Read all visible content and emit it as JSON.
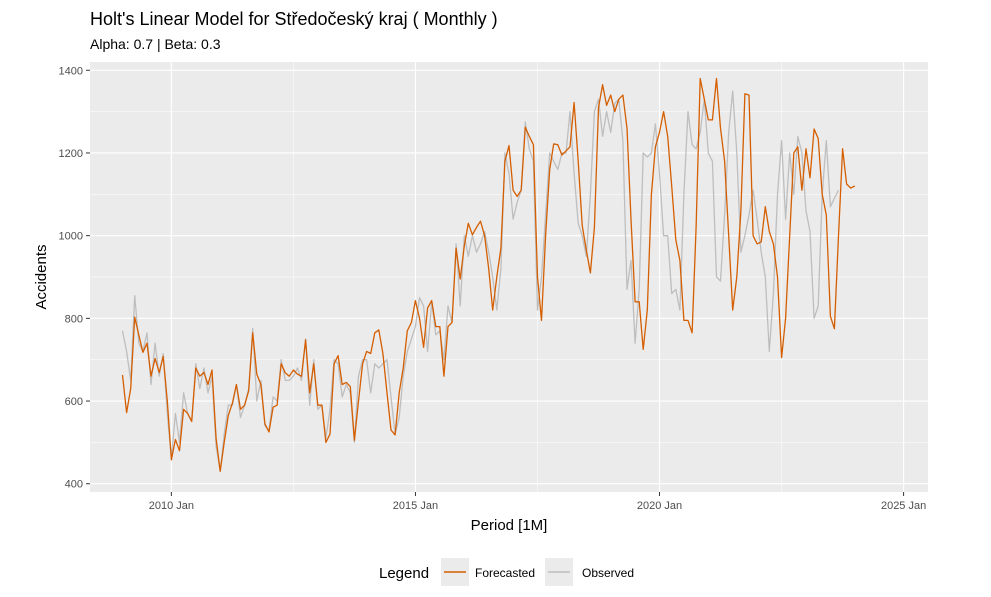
{
  "chart_data": {
    "type": "line",
    "title": "Holt's Linear Model for Středočeský kraj ( Monthly )",
    "subtitle": "Alpha: 0.7 | Beta: 0.3",
    "xlabel": "Period [1M]",
    "ylabel": "Accidents",
    "x_ticks": [
      "2010 Jan",
      "2015 Jan",
      "2020 Jan",
      "2025 Jan"
    ],
    "y_ticks": [
      400,
      600,
      800,
      1000,
      1200,
      1400
    ],
    "ylim": [
      380,
      1420
    ],
    "xlim": [
      "2008-05",
      "2025-07"
    ],
    "grid": true,
    "legend_position": "bottom",
    "legend": {
      "title": "Legend",
      "items": [
        {
          "label": "Forecasted",
          "color": "#D55E00"
        },
        {
          "label": "Observed",
          "color": "#BEBEBE"
        }
      ]
    },
    "start_month": "2009-01",
    "series": [
      {
        "name": "Observed",
        "color": "#BEBEBE",
        "values": [
          770,
          720,
          650,
          855,
          740,
          720,
          765,
          640,
          740,
          660,
          715,
          570,
          460,
          570,
          500,
          620,
          570,
          550,
          690,
          630,
          680,
          620,
          660,
          490,
          430,
          520,
          590,
          590,
          640,
          560,
          590,
          630,
          775,
          600,
          650,
          540,
          530,
          610,
          600,
          700,
          650,
          650,
          660,
          680,
          650,
          750,
          590,
          700,
          580,
          590,
          510,
          580,
          700,
          690,
          610,
          640,
          620,
          500,
          660,
          700,
          700,
          620,
          690,
          680,
          690,
          700,
          610,
          520,
          560,
          660,
          720,
          750,
          780,
          850,
          830,
          720,
          840,
          760,
          770,
          700,
          830,
          790,
          980,
          830,
          1000,
          950,
          1000,
          960,
          980,
          1010,
          960,
          900,
          820,
          920,
          1200,
          1150,
          1040,
          1080,
          1110,
          1275,
          1210,
          1180,
          820,
          900,
          1050,
          1200,
          1180,
          1160,
          1200,
          1200,
          1300,
          1150,
          1030,
          1000,
          950,
          1100,
          1300,
          1330,
          1240,
          1300,
          1250,
          1320,
          1330,
          1230,
          870,
          940,
          740,
          870,
          1200,
          1190,
          1200,
          1270,
          1150,
          1000,
          1000,
          860,
          870,
          820,
          1100,
          1300,
          1220,
          1210,
          1250,
          1330,
          1200,
          1180,
          900,
          890,
          1050,
          1250,
          1350,
          1200,
          960,
          1000,
          1050,
          1110,
          1040,
          960,
          900,
          720,
          860,
          1100,
          1230,
          1040,
          1200,
          1100,
          1240,
          1200,
          1060,
          1010,
          800,
          830,
          1100,
          1230,
          1070,
          1090,
          1110
        ]
      },
      {
        "name": "Forecasted",
        "color": "#D55E00",
        "values": [
          663,
          572,
          630,
          803,
          760,
          718,
          740,
          660,
          703,
          669,
          708,
          600,
          458,
          507,
          480,
          580,
          570,
          551,
          680,
          660,
          669,
          640,
          675,
          510,
          430,
          500,
          565,
          595,
          640,
          580,
          590,
          625,
          765,
          665,
          640,
          545,
          525,
          585,
          590,
          690,
          668,
          660,
          675,
          665,
          660,
          748,
          620,
          690,
          590,
          590,
          500,
          520,
          690,
          710,
          640,
          645,
          635,
          505,
          600,
          690,
          720,
          715,
          765,
          772,
          715,
          620,
          530,
          518,
          620,
          680,
          770,
          790,
          843,
          800,
          730,
          825,
          843,
          780,
          780,
          660,
          780,
          790,
          970,
          895,
          975,
          1030,
          1002,
          1020,
          1035,
          1000,
          920,
          820,
          900,
          970,
          1180,
          1218,
          1110,
          1095,
          1110,
          1262,
          1240,
          1220,
          900,
          795,
          1000,
          1160,
          1222,
          1220,
          1195,
          1205,
          1215,
          1322,
          1180,
          1025,
          965,
          910,
          1020,
          1310,
          1365,
          1315,
          1340,
          1300,
          1330,
          1340,
          1260,
          1040,
          840,
          840,
          725,
          820,
          1100,
          1215,
          1250,
          1300,
          1240,
          1120,
          990,
          940,
          795,
          795,
          765,
          1020,
          1380,
          1330,
          1280,
          1280,
          1380,
          1260,
          1180,
          1000,
          820,
          900,
          1060,
          1343,
          1340,
          1000,
          980,
          985,
          1070,
          1010,
          980,
          900,
          705,
          800,
          1000,
          1200,
          1215,
          1110,
          1210,
          1140,
          1258,
          1235,
          1100,
          1050,
          805,
          775,
          1000,
          1210,
          1125,
          1115,
          1120
        ]
      }
    ]
  }
}
